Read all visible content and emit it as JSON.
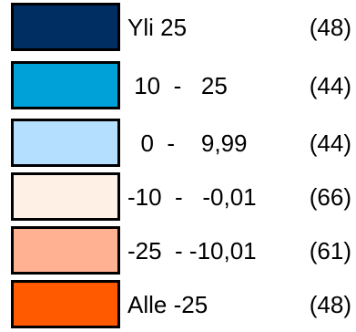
{
  "legend": {
    "items": [
      {
        "range_label": "Yli 25",
        "count": "(48)",
        "color": "#002d62"
      },
      {
        "range_label": " 10  -   25",
        "count": "(44)",
        "color": "#00a0d8"
      },
      {
        "range_label": "  0  -    9,99",
        "count": "(44)",
        "color": "#b5dfff"
      },
      {
        "range_label": "-10  -   -0,01",
        "count": "(66)",
        "color": "#fff0e6"
      },
      {
        "range_label": "-25  - -10,01",
        "count": "(61)",
        "color": "#ffb191"
      },
      {
        "range_label": "Alle -25",
        "count": "(48)",
        "color": "#ff5a00"
      }
    ]
  }
}
